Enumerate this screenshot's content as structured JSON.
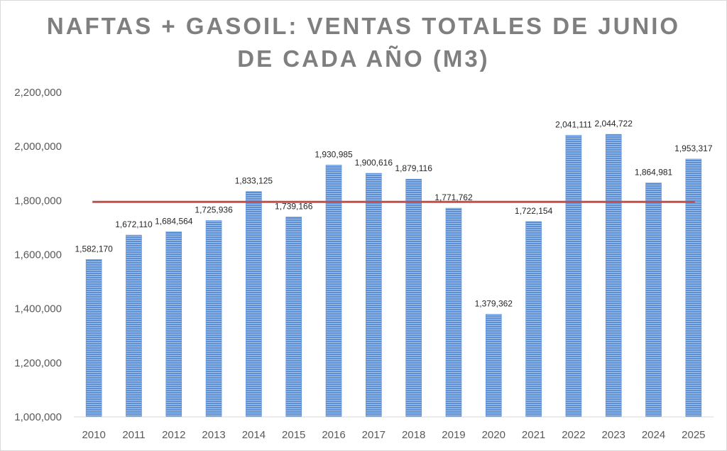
{
  "chart_data": {
    "type": "bar",
    "title_lines": [
      "NAFTAS + GASOIL: VENTAS TOTALES DE JUNIO",
      "DE CADA AÑO (M3)"
    ],
    "categories": [
      "2010",
      "2011",
      "2012",
      "2013",
      "2014",
      "2015",
      "2016",
      "2017",
      "2018",
      "2019",
      "2020",
      "2021",
      "2022",
      "2023",
      "2024",
      "2025"
    ],
    "values": [
      1582170,
      1672110,
      1684564,
      1725936,
      1833125,
      1739166,
      1930985,
      1900616,
      1879116,
      1771762,
      1379362,
      1722154,
      2041111,
      2044722,
      1864981,
      1953317
    ],
    "value_labels": [
      "1,582,170",
      "1,672,110",
      "1,684,564",
      "1,725,936",
      "1,833,125",
      "1,739,166",
      "1,930,985",
      "1,900,616",
      "1,879,116",
      "1,771,762",
      "1,379,362",
      "1,722,154",
      "2,041,111",
      "2,044,722",
      "1,864,981",
      "1,953,317"
    ],
    "ylim": [
      1000000,
      2200000
    ],
    "y_ticks": [
      1000000,
      1200000,
      1400000,
      1600000,
      1800000,
      2000000,
      2200000
    ],
    "y_tick_labels": [
      "1,000,000",
      "1,200,000",
      "1,400,000",
      "1,600,000",
      "1,800,000",
      "2,000,000",
      "2,200,000"
    ],
    "reference_line_value": 1795000,
    "xlabel": "",
    "ylabel": "",
    "grid": false,
    "legend": "none"
  },
  "colors": {
    "bar": "#5b8fd6",
    "bar_stripe": "#a9c4ea",
    "reference_line": "#c0504d",
    "title": "#7f7f7f",
    "axis": "#d9d9d9"
  }
}
